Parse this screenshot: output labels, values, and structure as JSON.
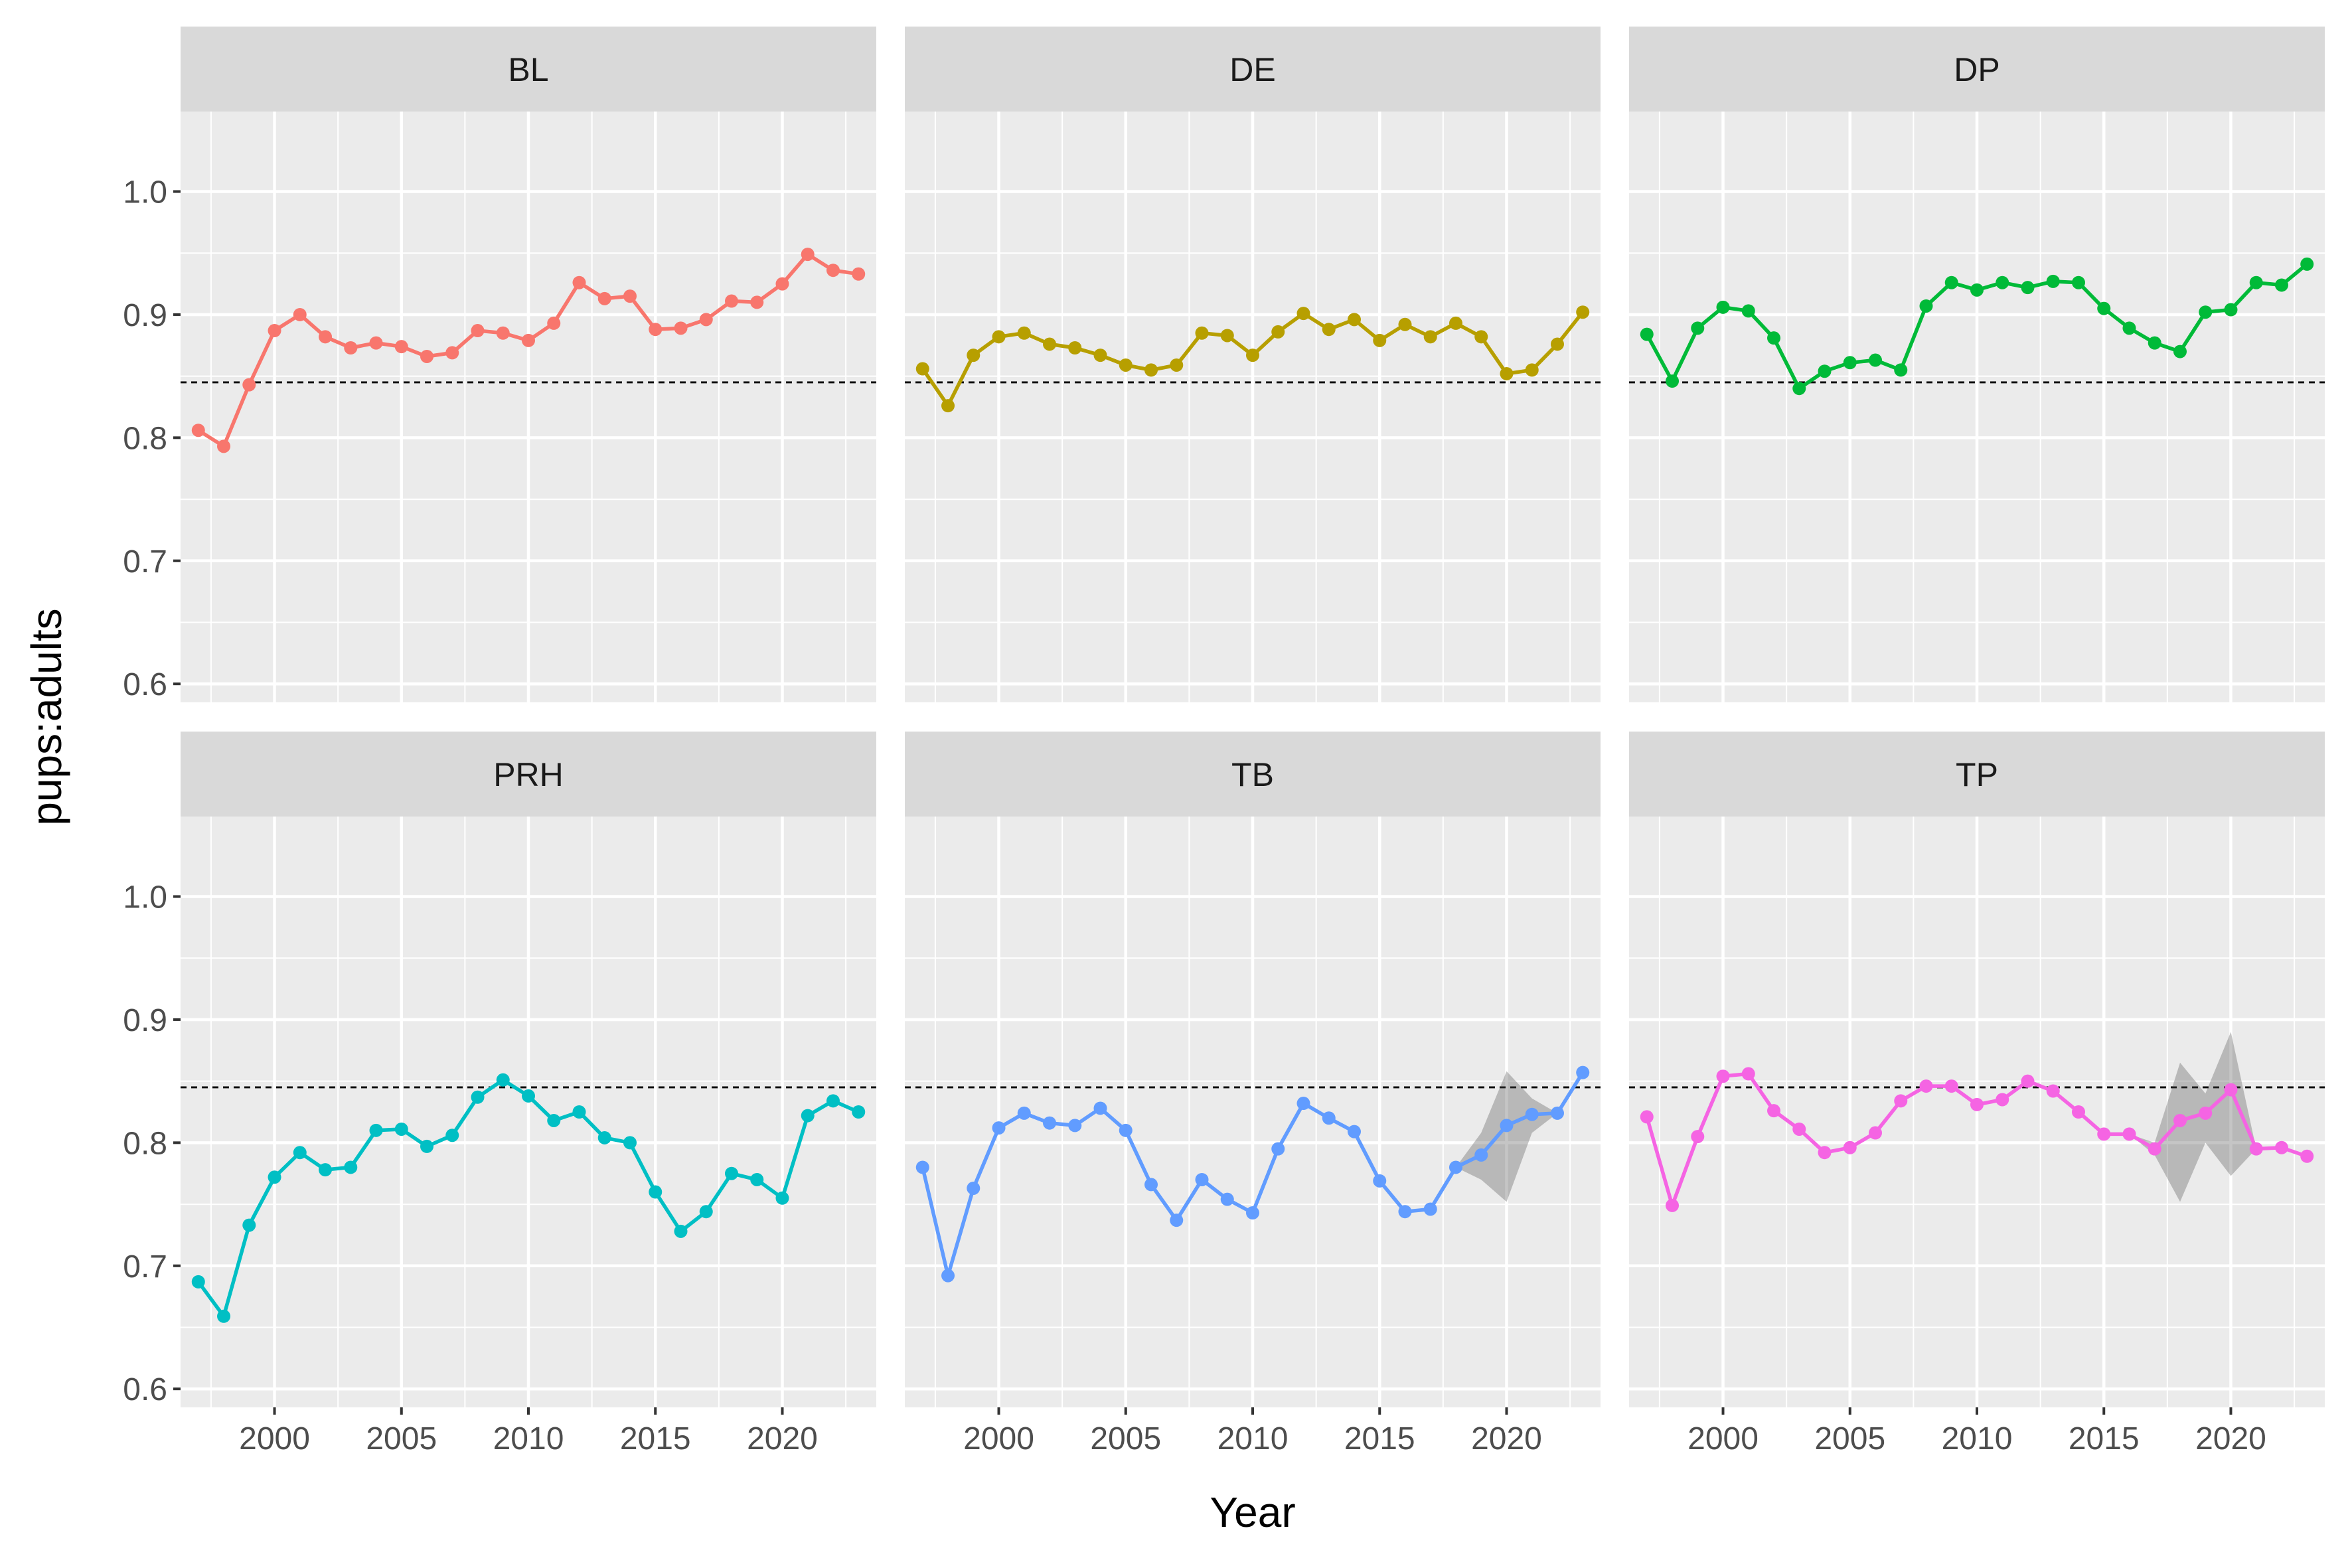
{
  "chart_data": {
    "type": "line",
    "xlabel": "Year",
    "ylabel": "pups:adults",
    "xlim": [
      1996.3,
      2023.7
    ],
    "ylim": [
      0.585,
      1.065
    ],
    "x_ticks": [
      2000,
      2005,
      2010,
      2015,
      2020
    ],
    "x_tick_labels": [
      "2000",
      "2005",
      "2010",
      "2015",
      "2020"
    ],
    "y_ticks": [
      0.6,
      0.7,
      0.8,
      0.9,
      1.0
    ],
    "y_tick_labels": [
      "0.6",
      "0.7",
      "0.8",
      "0.9",
      "1.0"
    ],
    "reference_line": 0.845,
    "grid": true,
    "legend": "none",
    "years": [
      1997,
      1998,
      1999,
      2000,
      2001,
      2002,
      2003,
      2004,
      2005,
      2006,
      2007,
      2008,
      2009,
      2010,
      2011,
      2012,
      2013,
      2014,
      2015,
      2016,
      2017,
      2018,
      2019,
      2020,
      2021,
      2022,
      2023
    ],
    "panels": [
      {
        "name": "BL",
        "color": "#F8766D",
        "values": [
          0.806,
          0.793,
          0.843,
          0.887,
          0.9,
          0.882,
          0.873,
          0.877,
          0.874,
          0.866,
          0.869,
          0.887,
          0.885,
          0.879,
          0.893,
          0.926,
          0.913,
          0.915,
          0.888,
          0.889,
          0.896,
          0.911,
          0.91,
          0.925,
          0.949,
          0.936,
          0.933
        ]
      },
      {
        "name": "DE",
        "color": "#B79F00",
        "values": [
          0.856,
          0.826,
          0.867,
          0.882,
          0.885,
          0.876,
          0.873,
          0.867,
          0.859,
          0.855,
          0.859,
          0.885,
          0.883,
          0.867,
          0.886,
          0.901,
          0.888,
          0.896,
          0.879,
          0.892,
          0.882,
          0.893,
          0.882,
          0.852,
          0.855,
          0.876,
          0.902
        ]
      },
      {
        "name": "DP",
        "color": "#00BA38",
        "values": [
          0.884,
          0.846,
          0.889,
          0.906,
          0.903,
          0.881,
          0.84,
          0.854,
          0.861,
          0.863,
          0.855,
          0.907,
          0.926,
          0.92,
          0.926,
          0.922,
          0.927,
          0.926,
          0.905,
          0.889,
          0.877,
          0.87,
          0.902,
          0.904,
          0.926,
          0.924,
          0.941
        ]
      },
      {
        "name": "PRH",
        "color": "#00BFC4",
        "values": [
          0.687,
          0.659,
          0.733,
          0.772,
          0.792,
          0.778,
          0.78,
          0.81,
          0.811,
          0.797,
          0.806,
          0.837,
          0.851,
          0.838,
          0.818,
          0.825,
          0.804,
          0.8,
          0.76,
          0.728,
          0.744,
          0.775,
          0.77,
          0.755,
          0.822,
          0.834,
          0.825
        ]
      },
      {
        "name": "TB",
        "color": "#619CFF",
        "values": [
          0.78,
          0.692,
          0.763,
          0.812,
          0.824,
          0.816,
          0.814,
          0.828,
          0.81,
          0.766,
          0.737,
          0.77,
          0.754,
          0.743,
          0.795,
          0.832,
          0.82,
          0.809,
          0.769,
          0.744,
          0.746,
          0.78,
          0.79,
          0.814,
          0.823,
          0.824,
          0.857
        ],
        "ribbon": {
          "x": [
            2018,
            2019,
            2020,
            2021,
            2022
          ],
          "lower": [
            0.78,
            0.77,
            0.752,
            0.808,
            0.824
          ],
          "upper": [
            0.78,
            0.808,
            0.858,
            0.836,
            0.824
          ]
        }
      },
      {
        "name": "TP",
        "color": "#F564E3",
        "values": [
          0.821,
          0.749,
          0.805,
          0.854,
          0.856,
          0.826,
          0.811,
          0.792,
          0.796,
          0.808,
          0.834,
          0.846,
          0.846,
          0.831,
          0.835,
          0.85,
          0.842,
          0.825,
          0.807,
          0.807,
          0.795,
          0.818,
          0.824,
          0.843,
          0.795,
          0.796,
          0.789
        ],
        "ribbon": {
          "x": [
            2016,
            2017,
            2018,
            2019,
            2020,
            2021
          ],
          "lower": [
            0.807,
            0.79,
            0.752,
            0.8,
            0.773,
            0.795
          ],
          "upper": [
            0.807,
            0.8,
            0.865,
            0.84,
            0.89,
            0.795
          ]
        }
      }
    ]
  }
}
